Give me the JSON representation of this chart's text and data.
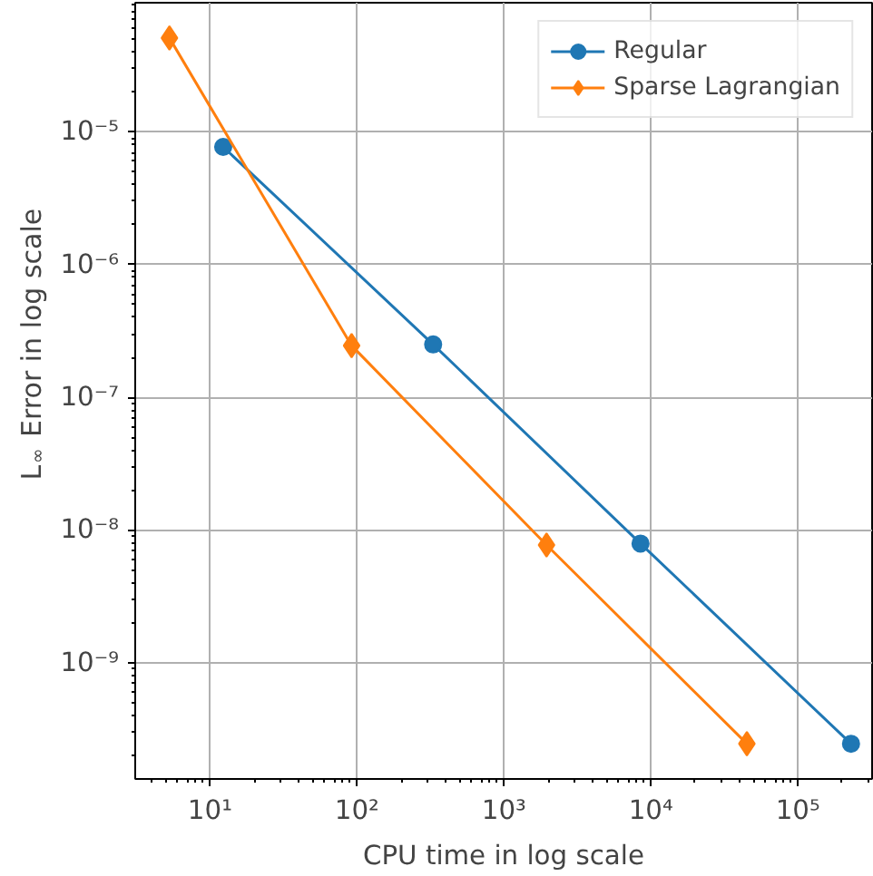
{
  "chart_data": {
    "type": "line",
    "xlabel": "CPU time in log scale",
    "ylabel": "L$_{∞}$ Error in log scale",
    "log": "xy",
    "grid": true,
    "legend": "top right",
    "xlim": [
      3.1,
      320000
    ],
    "ylim": [
      1.33e-10,
      9.4e-05
    ],
    "xticks": [
      {
        "value": 10,
        "label": "10¹"
      },
      {
        "value": 100,
        "label": "10²"
      },
      {
        "value": 1000,
        "label": "10³"
      },
      {
        "value": 10000,
        "label": "10⁴"
      },
      {
        "value": 100000,
        "label": "10⁵"
      }
    ],
    "yticks": [
      {
        "value": 1e-09,
        "label": "10⁻⁹"
      },
      {
        "value": 1e-08,
        "label": "10⁻⁸"
      },
      {
        "value": 1e-07,
        "label": "10⁻⁷"
      },
      {
        "value": 1e-06,
        "label": "10⁻⁶"
      },
      {
        "value": 1e-05,
        "label": "10⁻⁵"
      }
    ],
    "series": [
      {
        "name": "Regular",
        "color": "#1f77b4",
        "marker": "circle",
        "x": [
          12.3,
          330,
          8500,
          230000
        ],
        "values": [
          7.7e-06,
          2.5e-07,
          7.9e-09,
          2.45e-10
        ]
      },
      {
        "name": "Sparse Lagrangian",
        "color": "#ff7f0e",
        "marker": "diamond",
        "x": [
          5.3,
          92,
          1950,
          45000
        ],
        "values": [
          5.1e-05,
          2.45e-07,
          7.7e-09,
          2.45e-10
        ]
      }
    ]
  }
}
